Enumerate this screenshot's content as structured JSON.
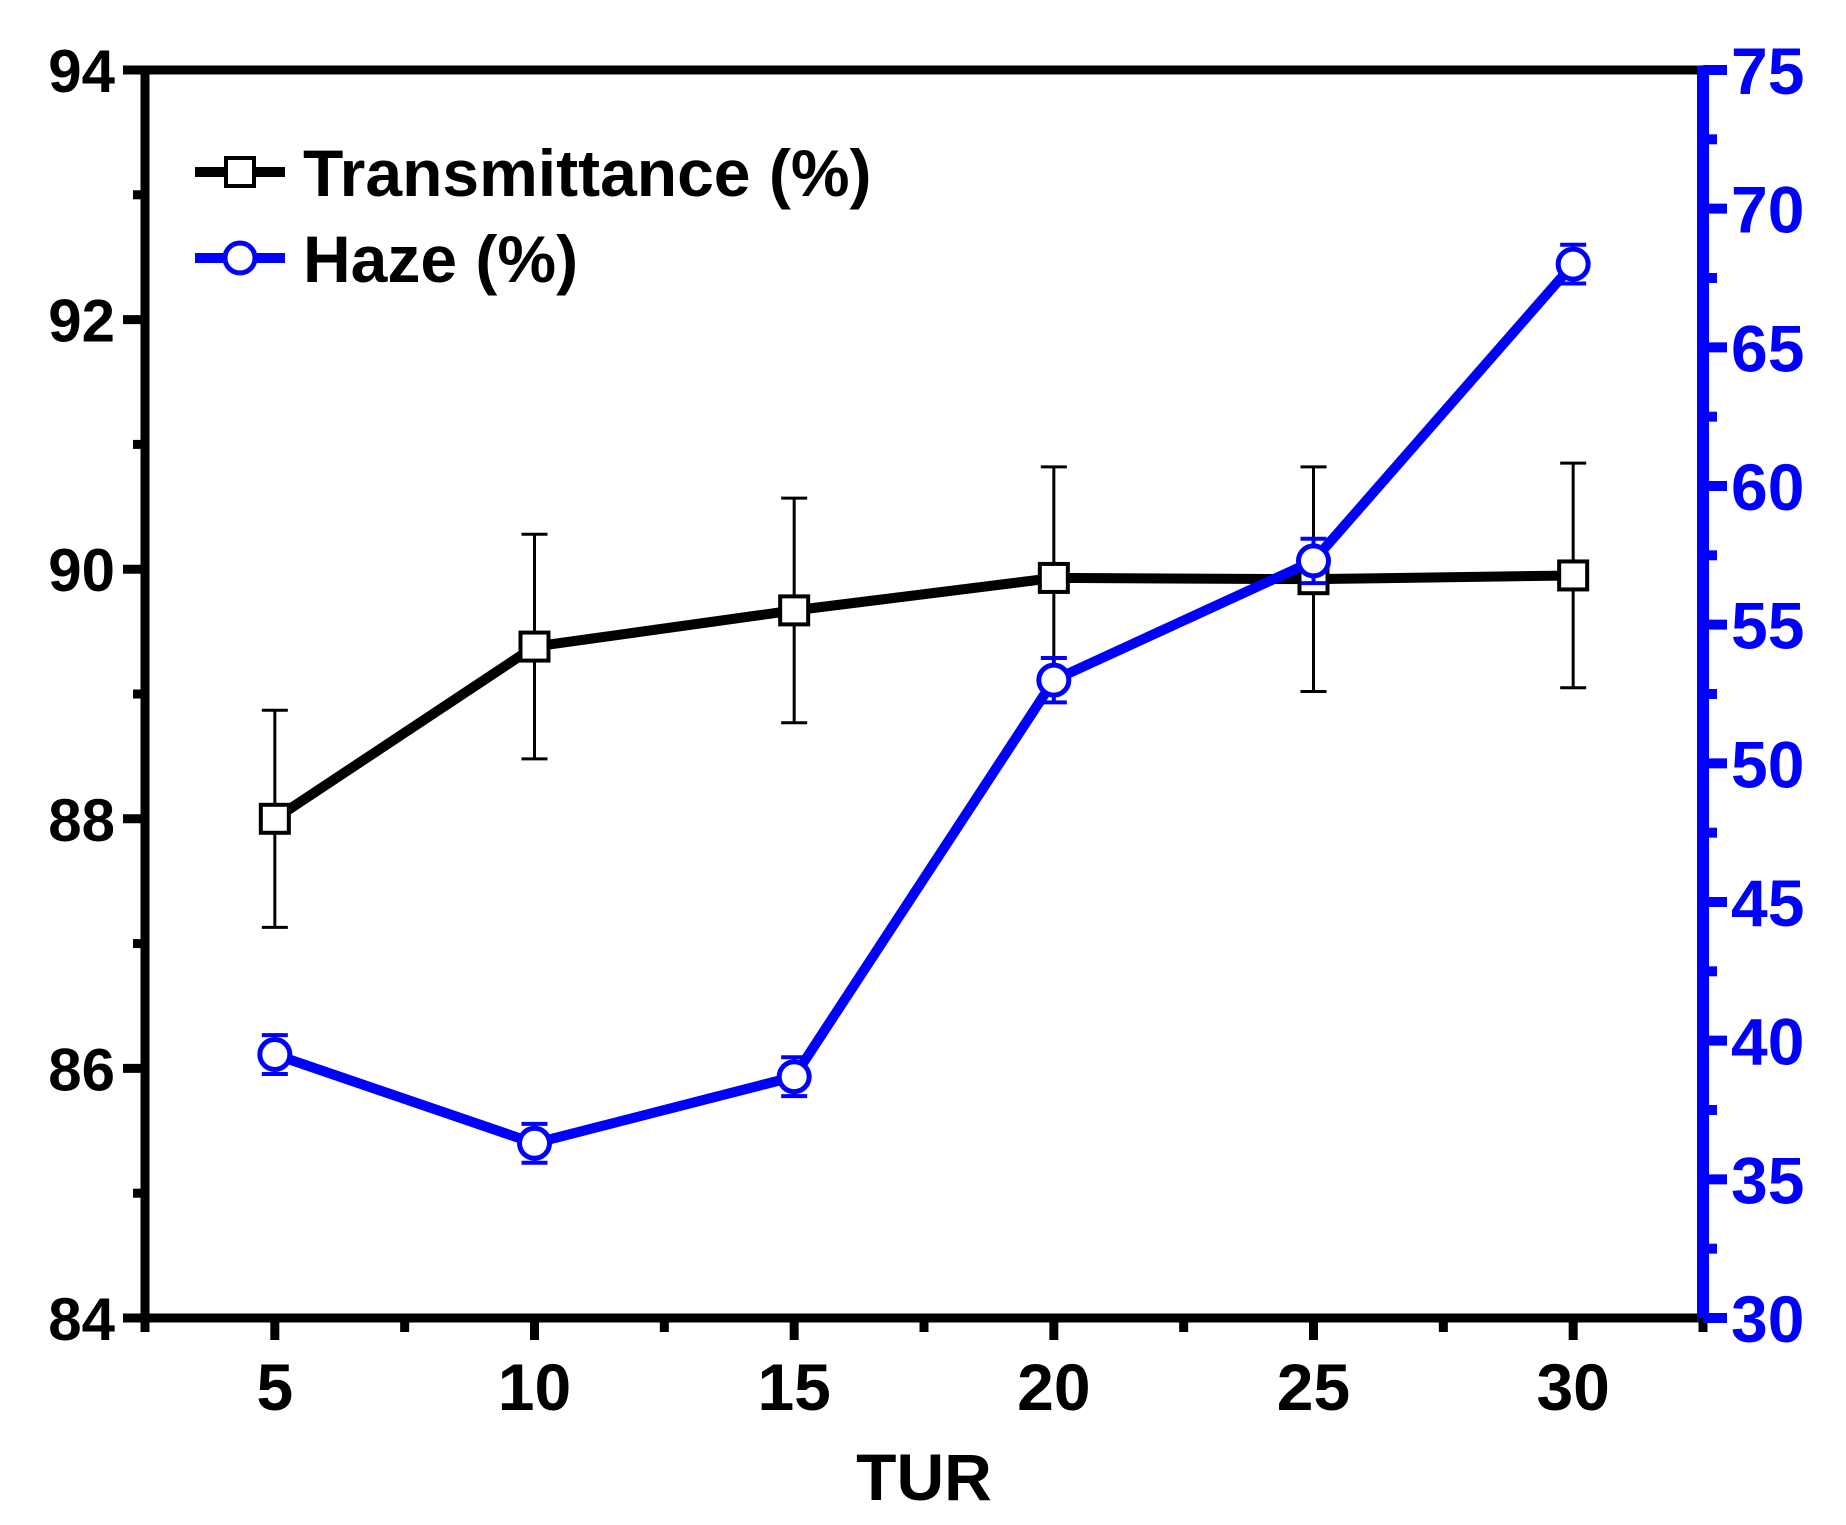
{
  "chart_data": {
    "type": "line",
    "xlabel": "TUR",
    "x": [
      5,
      10,
      15,
      20,
      25,
      30
    ],
    "xlim": [
      2.5,
      32.5
    ],
    "xticks": [
      5,
      10,
      15,
      20,
      25,
      30
    ],
    "left_axis": {
      "ylim": [
        84,
        94
      ],
      "ticks": [
        84,
        86,
        88,
        90,
        92,
        94
      ],
      "color": "#000000"
    },
    "right_axis": {
      "ylim": [
        30,
        75
      ],
      "ticks": [
        30,
        35,
        40,
        45,
        50,
        55,
        60,
        65,
        70,
        75
      ],
      "color": "#0000ff"
    },
    "series": [
      {
        "name": "Transmittance (%)",
        "axis": "left",
        "marker": "square",
        "color": "#000000",
        "values": [
          88.0,
          89.38,
          89.67,
          89.93,
          89.92,
          89.95
        ],
        "errors": [
          0.87,
          0.9,
          0.9,
          0.89,
          0.9,
          0.9
        ]
      },
      {
        "name": "Haze (%)",
        "axis": "right",
        "marker": "circle",
        "color": "#0000ff",
        "values": [
          39.5,
          36.3,
          38.7,
          53.0,
          57.3,
          68.0
        ],
        "errors": [
          0.7,
          0.7,
          0.7,
          0.8,
          0.8,
          0.7
        ]
      }
    ],
    "legend_position": "top-left"
  }
}
